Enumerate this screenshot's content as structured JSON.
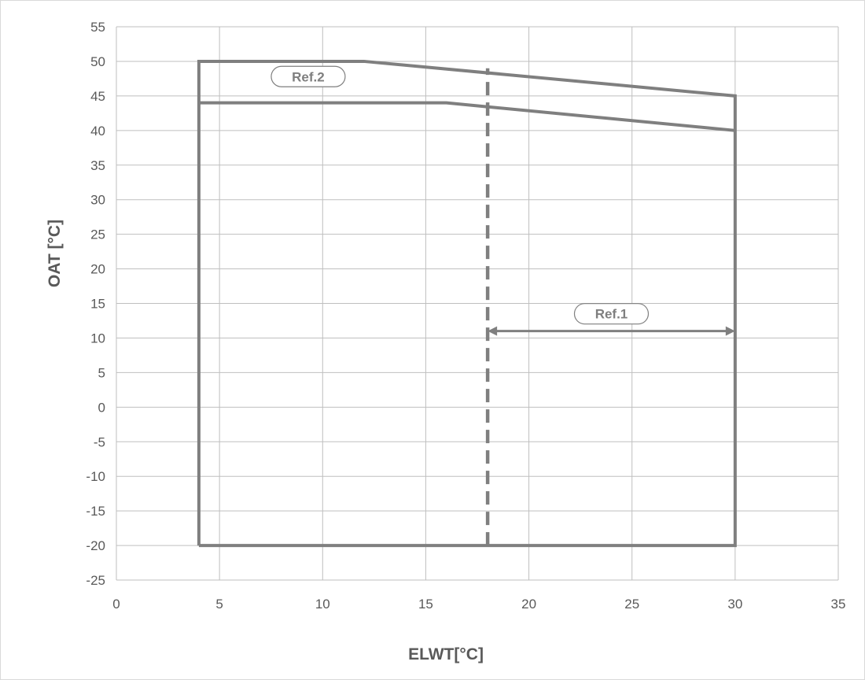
{
  "chart_data": {
    "type": "line",
    "title": "",
    "xlabel": "ELWT[°C]",
    "ylabel": "OAT [°C]",
    "xlim": [
      0,
      35
    ],
    "ylim": [
      -25,
      55
    ],
    "x_ticks": [
      0,
      5,
      10,
      15,
      20,
      25,
      30,
      35
    ],
    "y_ticks": [
      55,
      50,
      45,
      40,
      35,
      30,
      25,
      20,
      15,
      10,
      5,
      0,
      -5,
      -10,
      -15,
      -20,
      -25
    ],
    "grid": true,
    "legend": "none",
    "colors": {
      "series": "#7f7f7f",
      "grid": "#bfbfbf",
      "text": "#595959",
      "border": "#d9d9d9"
    },
    "series": [
      {
        "style": "solid",
        "x": [
          4,
          4,
          12,
          30,
          30,
          4
        ],
        "y": [
          -20,
          50,
          50,
          45,
          -20,
          -20
        ]
      },
      {
        "style": "solid",
        "x": [
          4,
          16,
          30
        ],
        "y": [
          44,
          44,
          40
        ]
      },
      {
        "style": "dashed",
        "x": [
          18,
          18
        ],
        "y": [
          -20,
          49
        ]
      }
    ],
    "annotations": [
      {
        "text": "Ref.1",
        "x": 24,
        "y": 13.5,
        "arrow": {
          "from": [
            18,
            11
          ],
          "to": [
            30,
            11
          ],
          "double": true
        }
      },
      {
        "text": "Ref.2",
        "x": 9.3,
        "y": 47.8
      }
    ]
  }
}
